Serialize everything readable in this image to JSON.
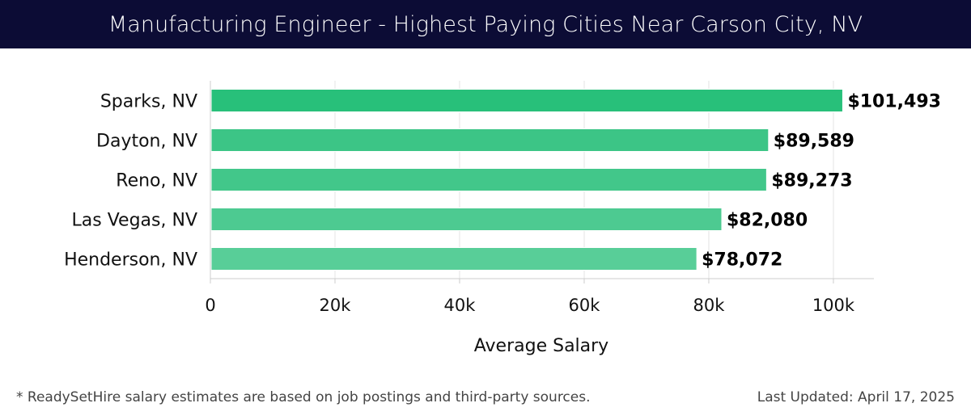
{
  "header": {
    "title": "Manufacturing Engineer - Highest Paying Cities Near Carson City, NV"
  },
  "footer": {
    "note": "* ReadySetHire salary estimates are based on job postings and third-party sources.",
    "updated": "Last Updated: April 17, 2025"
  },
  "chart_data": {
    "type": "bar",
    "orientation": "horizontal",
    "title": "Manufacturing Engineer - Highest Paying Cities Near Carson City, NV",
    "xlabel": "Average Salary",
    "ylabel": "",
    "categories": [
      "Sparks, NV",
      "Dayton, NV",
      "Reno, NV",
      "Las Vegas, NV",
      "Henderson, NV"
    ],
    "values": [
      101493,
      89589,
      89273,
      82080,
      78072
    ],
    "value_labels": [
      "$101,493",
      "$89,589",
      "$89,273",
      "$82,080",
      "$78,072"
    ],
    "xlim": [
      0,
      106500
    ],
    "xticks": [
      0,
      20000,
      40000,
      60000,
      80000,
      100000
    ],
    "xtick_labels": [
      "0",
      "20k",
      "40k",
      "60k",
      "80k",
      "100k"
    ],
    "grid": true,
    "colors": [
      "#28c07a",
      "#3cc586",
      "#42c78a",
      "#4dca91",
      "#58ce98"
    ]
  }
}
